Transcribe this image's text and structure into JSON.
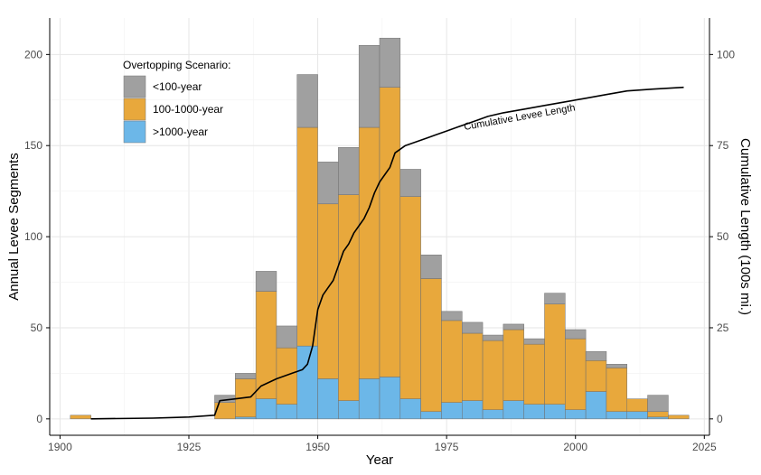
{
  "chart_data": {
    "type": "bar",
    "stacked": true,
    "xlabel": "Year",
    "ylabel": "Annual Levee Segments",
    "y2label": "Cumulative Length (100s mi.)",
    "xlim": [
      1898,
      2026
    ],
    "ylim": [
      -9,
      220
    ],
    "y2lim": [
      -4.5,
      110
    ],
    "x_ticks": [
      1900,
      1925,
      1950,
      1975,
      2000,
      2025
    ],
    "y_ticks": [
      0,
      50,
      100,
      150,
      200
    ],
    "y2_ticks": [
      0,
      25,
      50,
      75,
      100
    ],
    "grid": true,
    "bin_width": 4,
    "legend": {
      "title": "Overtopping Scenario:",
      "placement": "top-left",
      "entries": [
        "<100-year",
        "100-1000-year",
        ">1000-year"
      ]
    },
    "bin_start": [
      1902,
      1930,
      1934,
      1938,
      1942,
      1946,
      1950,
      1954,
      1958,
      1962,
      1966,
      1970,
      1974,
      1978,
      1982,
      1986,
      1990,
      1994,
      1998,
      2002,
      2006,
      2010,
      2014,
      2018
    ],
    "series": [
      {
        "name": ">1000-year",
        "color": "#6cb7e8",
        "values": [
          0,
          0,
          1,
          11,
          8,
          40,
          22,
          10,
          22,
          23,
          11,
          4,
          9,
          10,
          5,
          10,
          8,
          8,
          5,
          15,
          4,
          4,
          1,
          0
        ]
      },
      {
        "name": "100-1000-year",
        "color": "#e8a83c",
        "values": [
          2,
          9,
          21,
          59,
          31,
          120,
          96,
          113,
          138,
          159,
          111,
          73,
          45,
          37,
          38,
          39,
          33,
          55,
          39,
          17,
          24,
          7,
          3,
          2
        ]
      },
      {
        "name": "<100-year",
        "color": "#a0a0a0",
        "values": [
          0,
          4,
          3,
          11,
          12,
          29,
          23,
          26,
          45,
          27,
          15,
          13,
          5,
          6,
          3,
          3,
          3,
          6,
          5,
          5,
          2,
          0,
          9,
          0
        ]
      }
    ],
    "cumulative": {
      "label": "Cumulative Levee Length",
      "axis": "right",
      "points": [
        [
          1906,
          0
        ],
        [
          1918,
          0.2
        ],
        [
          1925,
          0.5
        ],
        [
          1930,
          1
        ],
        [
          1931,
          5
        ],
        [
          1934,
          5.5
        ],
        [
          1937,
          6
        ],
        [
          1939,
          9
        ],
        [
          1942,
          11
        ],
        [
          1945,
          12.5
        ],
        [
          1947,
          13.5
        ],
        [
          1948,
          15
        ],
        [
          1949,
          20
        ],
        [
          1950,
          30
        ],
        [
          1951,
          34
        ],
        [
          1952,
          36
        ],
        [
          1953,
          38
        ],
        [
          1954,
          42
        ],
        [
          1955,
          46
        ],
        [
          1956,
          48
        ],
        [
          1957,
          51
        ],
        [
          1958,
          53
        ],
        [
          1959,
          55
        ],
        [
          1960,
          58
        ],
        [
          1961,
          62
        ],
        [
          1962,
          65
        ],
        [
          1963,
          67
        ],
        [
          1964,
          69
        ],
        [
          1965,
          73
        ],
        [
          1967,
          75
        ],
        [
          1969,
          76
        ],
        [
          1971,
          77
        ],
        [
          1973,
          78
        ],
        [
          1975,
          79
        ],
        [
          1977,
          80
        ],
        [
          1979,
          81
        ],
        [
          1981,
          82
        ],
        [
          1983,
          83
        ],
        [
          1986,
          84
        ],
        [
          1990,
          85
        ],
        [
          1994,
          86
        ],
        [
          1998,
          87
        ],
        [
          2002,
          88
        ],
        [
          2006,
          89
        ],
        [
          2010,
          90
        ],
        [
          2015,
          90.5
        ],
        [
          2021,
          91
        ]
      ]
    }
  }
}
